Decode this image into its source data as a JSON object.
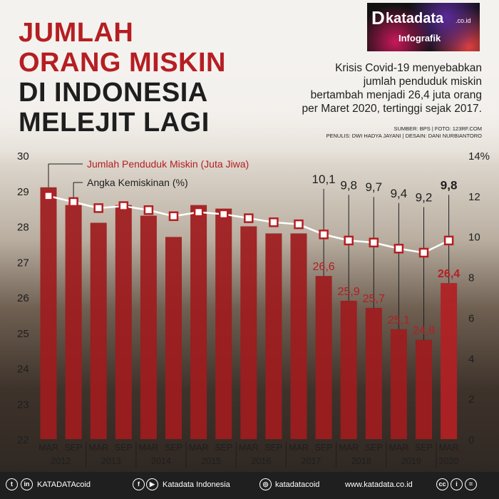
{
  "header": {
    "title_lines": [
      "JUMLAH",
      "ORANG MISKIN",
      "DI INDONESIA",
      "MELEJIT LAGI"
    ],
    "intro_lines": [
      "Krisis Covid-19 menyebabkan",
      "jumlah penduduk miskin",
      "bertambah menjadi 26,4 juta orang",
      "per Maret 2020, tertinggi sejak 2017."
    ],
    "source": "SUMBER: BPS | FOTO: 123RF.COM",
    "authors": "PENULIS: DWI HADYA JAYANI | DESAIN: DANI NURBIANTORO"
  },
  "logo": {
    "brand": "katadata",
    "suffix": ".co.id",
    "label": "Infografik"
  },
  "chart_data": {
    "type": "bar",
    "periods": [
      "MAR",
      "SEP",
      "MAR",
      "SEP",
      "MAR",
      "SEP",
      "MAR",
      "SEP",
      "MAR",
      "SEP",
      "MAR",
      "SEP",
      "MAR",
      "SEP",
      "MAR",
      "SEP",
      "MAR"
    ],
    "years": [
      "2012",
      "2013",
      "2014",
      "2015",
      "2016",
      "2017",
      "2018",
      "2019",
      "2020"
    ],
    "series": [
      {
        "name": "Jumlah Penduduk Miskin (Juta Jiwa)",
        "type": "bar",
        "axis": "left",
        "values": [
          29.1,
          28.6,
          28.1,
          28.6,
          28.3,
          27.7,
          28.6,
          28.5,
          28.0,
          27.8,
          27.8,
          26.6,
          25.9,
          25.7,
          25.1,
          24.8,
          26.4
        ],
        "labels": [
          "",
          "",
          "",
          "",
          "",
          "",
          "",
          "",
          "",
          "",
          "",
          "26,6",
          "25,9",
          "25,7",
          "25,1",
          "24,8",
          "26,4"
        ]
      },
      {
        "name": "Angka Kemiskinan (%)",
        "type": "line",
        "axis": "right",
        "values": [
          12.0,
          11.7,
          11.4,
          11.5,
          11.3,
          11.0,
          11.2,
          11.1,
          10.9,
          10.7,
          10.6,
          10.1,
          9.8,
          9.7,
          9.4,
          9.2,
          9.8
        ],
        "labels": [
          "",
          "",
          "",
          "",
          "",
          "",
          "",
          "",
          "",
          "",
          "",
          "10,1",
          "9,8",
          "9,7",
          "9,4",
          "9,2",
          "9,8"
        ]
      }
    ],
    "y_left": {
      "min": 22,
      "max": 30,
      "ticks": [
        "22",
        "23",
        "24",
        "25",
        "26",
        "27",
        "28",
        "29",
        "30"
      ]
    },
    "y_right": {
      "min": 0,
      "max": 14,
      "ticks": [
        "0",
        "2",
        "4",
        "6",
        "8",
        "10",
        "12",
        "14%"
      ]
    },
    "colors": {
      "bar": "#9e1c1e",
      "bar_last": "#b22024",
      "line": "#ffffff",
      "marker_fill": "#ffffff",
      "marker_stroke": "#b51e22",
      "label_red": "#b51e22",
      "label_dark": "#1e1e1e"
    },
    "legend_placement": "top-left"
  },
  "footer": {
    "handle1": "KATADATAcoid",
    "page": "Katadata Indonesia",
    "handle2": "katadatacoid",
    "url": "www.katadata.co.id"
  }
}
